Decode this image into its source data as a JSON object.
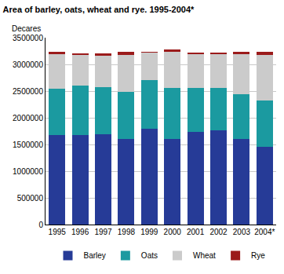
{
  "chart_data": {
    "type": "bar",
    "title": "Area of barley, oats, wheat and rye. 1995-2004*",
    "y_label": "Decares",
    "categories": [
      "1995",
      "1996",
      "1997",
      "1998",
      "1999",
      "2000",
      "2001",
      "2002",
      "2003",
      "2004*"
    ],
    "series": [
      {
        "name": "Barley",
        "color": "#263b97",
        "values": [
          1680000,
          1680000,
          1690000,
          1610000,
          1800000,
          1610000,
          1730000,
          1770000,
          1600000,
          1460000
        ]
      },
      {
        "name": "Oats",
        "color": "#1b9aa0",
        "values": [
          870000,
          920000,
          880000,
          880000,
          900000,
          950000,
          830000,
          790000,
          840000,
          860000
        ]
      },
      {
        "name": "Wheat",
        "color": "#cbcbcb",
        "values": [
          640000,
          570000,
          590000,
          680000,
          520000,
          670000,
          630000,
          630000,
          750000,
          850000
        ]
      },
      {
        "name": "Rye",
        "color": "#9b1b1b",
        "values": [
          40000,
          30000,
          40000,
          60000,
          20000,
          50000,
          30000,
          30000,
          40000,
          70000
        ]
      }
    ],
    "ylim": [
      0,
      3500000
    ],
    "yticks": [
      0,
      500000,
      1000000,
      1500000,
      2000000,
      2500000,
      3000000,
      3500000
    ],
    "stacked": true,
    "grid": true,
    "legend": "bottom"
  }
}
